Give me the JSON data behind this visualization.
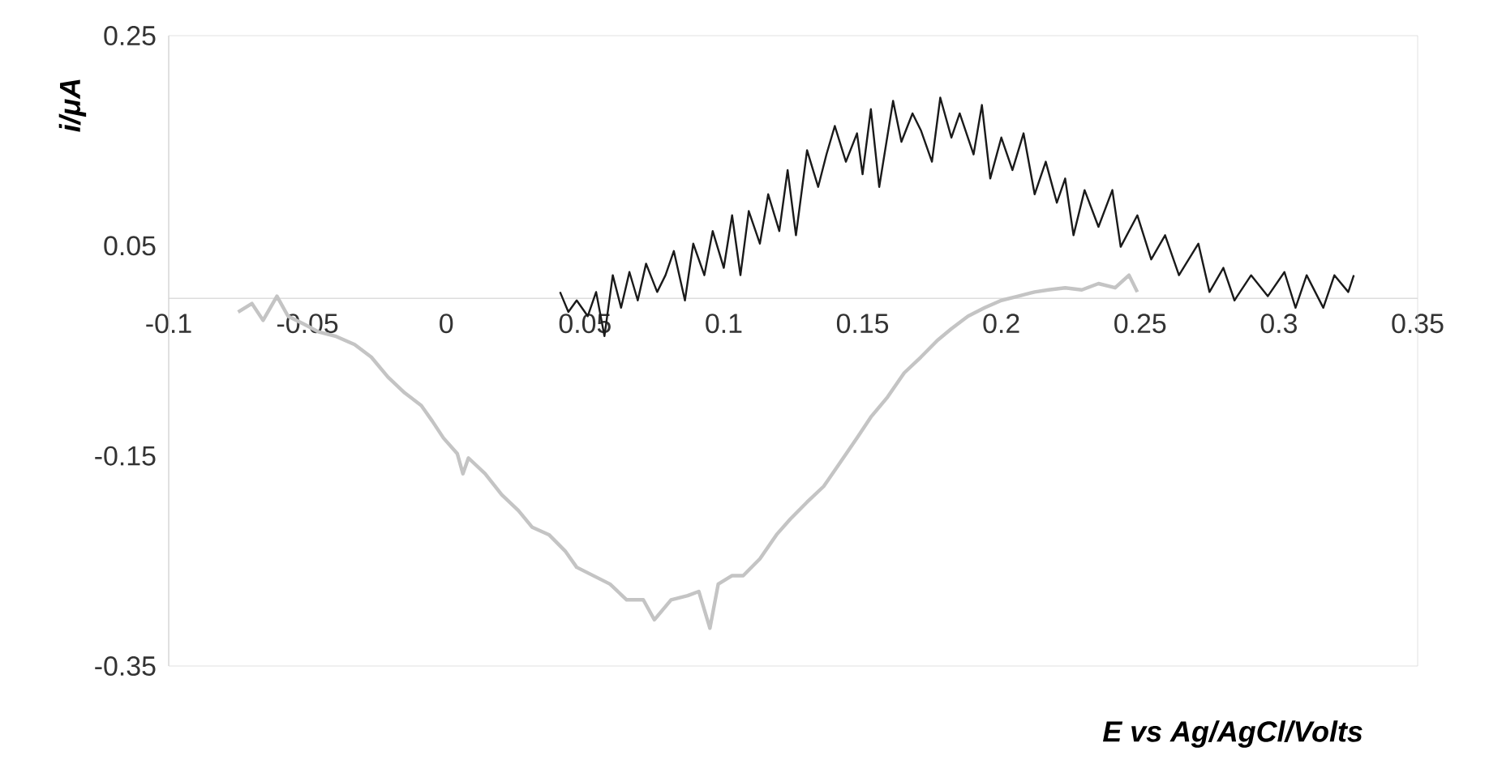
{
  "chart_data": {
    "type": "line",
    "xlabel": "E vs Ag/AgCl/Volts",
    "ylabel": "i/μA",
    "xlim": [
      -0.1,
      0.35
    ],
    "ylim": [
      -0.35,
      0.25
    ],
    "xticks": [
      -0.1,
      -0.05,
      0,
      0.05,
      0.1,
      0.15,
      0.2,
      0.25,
      0.3,
      0.35
    ],
    "yticks": [
      0.25,
      0.05,
      -0.15,
      -0.35
    ],
    "series": [
      {
        "color": "#1a1a1a",
        "x": [
          0.041,
          0.044,
          0.047,
          0.051,
          0.054,
          0.057,
          0.06,
          0.063,
          0.066,
          0.069,
          0.072,
          0.076,
          0.079,
          0.082,
          0.086,
          0.089,
          0.093,
          0.096,
          0.1,
          0.103,
          0.106,
          0.109,
          0.113,
          0.116,
          0.12,
          0.123,
          0.126,
          0.13,
          0.134,
          0.137,
          0.14,
          0.144,
          0.148,
          0.15,
          0.153,
          0.156,
          0.161,
          0.164,
          0.168,
          0.171,
          0.175,
          0.178,
          0.182,
          0.185,
          0.19,
          0.193,
          0.196,
          0.2,
          0.204,
          0.208,
          0.212,
          0.216,
          0.22,
          0.223,
          0.226,
          0.23,
          0.235,
          0.24,
          0.243,
          0.249,
          0.254,
          0.259,
          0.264,
          0.271,
          0.275,
          0.28,
          0.284,
          0.29,
          0.296,
          0.302,
          0.306,
          0.31,
          0.316,
          0.32,
          0.325,
          0.327
        ],
        "values": [
          0.006,
          -0.013,
          -0.002,
          -0.017,
          0.006,
          -0.036,
          0.022,
          -0.009,
          0.025,
          -0.002,
          0.033,
          0.006,
          0.022,
          0.045,
          -0.002,
          0.052,
          0.022,
          0.064,
          0.029,
          0.079,
          0.022,
          0.083,
          0.052,
          0.099,
          0.064,
          0.122,
          0.06,
          0.141,
          0.106,
          0.137,
          0.164,
          0.13,
          0.157,
          0.118,
          0.18,
          0.106,
          0.188,
          0.149,
          0.176,
          0.16,
          0.13,
          0.191,
          0.153,
          0.176,
          0.137,
          0.184,
          0.114,
          0.153,
          0.122,
          0.157,
          0.099,
          0.13,
          0.091,
          0.114,
          0.06,
          0.103,
          0.068,
          0.103,
          0.049,
          0.079,
          0.037,
          0.06,
          0.022,
          0.052,
          0.006,
          0.029,
          -0.002,
          0.022,
          0.002,
          0.025,
          -0.009,
          0.022,
          -0.009,
          0.022,
          0.006,
          0.022
        ]
      },
      {
        "color": "#c4c4c4",
        "x": [
          -0.075,
          -0.07,
          -0.066,
          -0.061,
          -0.057,
          -0.051,
          -0.046,
          -0.04,
          -0.033,
          -0.027,
          -0.021,
          -0.015,
          -0.009,
          -0.005,
          -0.001,
          0.004,
          0.006,
          0.008,
          0.014,
          0.02,
          0.026,
          0.031,
          0.037,
          0.043,
          0.047,
          0.053,
          0.059,
          0.065,
          0.071,
          0.075,
          0.081,
          0.087,
          0.091,
          0.095,
          0.098,
          0.103,
          0.107,
          0.113,
          0.119,
          0.124,
          0.13,
          0.136,
          0.142,
          0.148,
          0.153,
          0.159,
          0.165,
          0.171,
          0.177,
          0.182,
          0.188,
          0.194,
          0.2,
          0.206,
          0.212,
          0.217,
          0.223,
          0.229,
          0.235,
          0.241,
          0.246,
          0.249
        ],
        "values": [
          -0.013,
          -0.005,
          -0.021,
          0.002,
          -0.017,
          -0.025,
          -0.032,
          -0.036,
          -0.044,
          -0.056,
          -0.075,
          -0.09,
          -0.102,
          -0.117,
          -0.133,
          -0.148,
          -0.167,
          -0.152,
          -0.167,
          -0.187,
          -0.202,
          -0.218,
          -0.225,
          -0.241,
          -0.256,
          -0.264,
          -0.272,
          -0.287,
          -0.287,
          -0.306,
          -0.287,
          -0.283,
          -0.279,
          -0.314,
          -0.272,
          -0.264,
          -0.264,
          -0.248,
          -0.225,
          -0.21,
          -0.194,
          -0.179,
          -0.156,
          -0.133,
          -0.113,
          -0.094,
          -0.071,
          -0.056,
          -0.04,
          -0.029,
          -0.017,
          -0.009,
          -0.002,
          0.002,
          0.006,
          0.008,
          0.01,
          0.008,
          0.014,
          0.01,
          0.022,
          0.006
        ]
      }
    ]
  }
}
